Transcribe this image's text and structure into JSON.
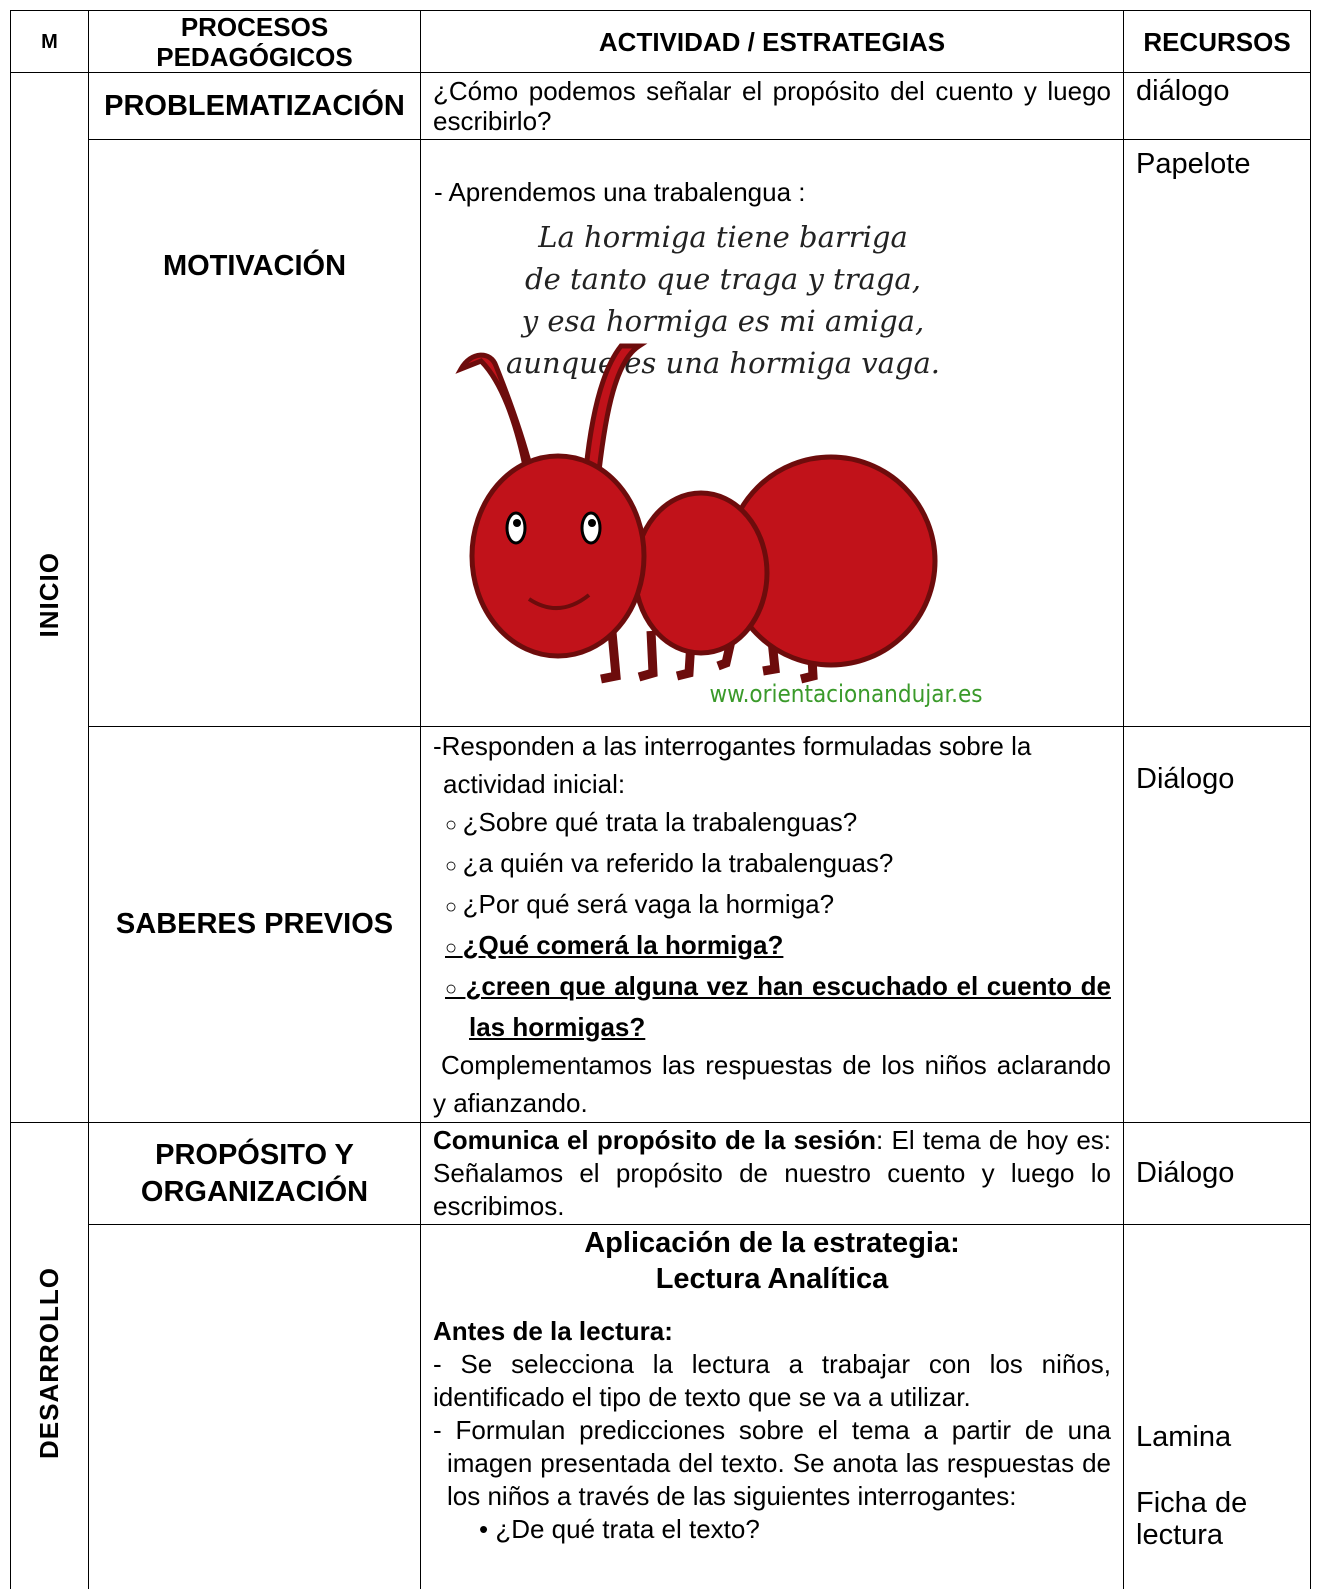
{
  "table": {
    "headers": [
      "M",
      "PROCESOS PEDAGÓGICOS",
      "ACTIVIDAD / ESTRATEGIAS",
      "RECURSOS"
    ],
    "moments": [
      "INICIO",
      "DESARROLLO"
    ],
    "rows": [
      {
        "process": "PROBLEMATIZACIÓN",
        "activity": "¿Cómo podemos señalar el propósito del cuento y luego escribirlo?",
        "resources": [
          "diálogo"
        ]
      },
      {
        "process": "MOTIVACIÓN",
        "intro": "- Aprendemos una trabalengua :",
        "twister": [
          "La hormiga tiene barriga",
          "de tanto que traga y traga,",
          "y esa hormiga es mi amiga,",
          "aunque es una hormiga vaga."
        ],
        "watermark": "ww.orientacionandujar.es",
        "resources": [
          "Papelote"
        ]
      },
      {
        "process": "SABERES PREVIOS",
        "intro": "-Responden a las interrogantes formuladas sobre la actividad inicial:",
        "questions": [
          "¿Sobre qué trata la trabalenguas?",
          "¿a quién va referido la trabalenguas?",
          "¿Por qué será vaga la hormiga?",
          "¿Qué comerá la hormiga?",
          "¿creen que alguna vez han escuchado el cuento de las hormigas?"
        ],
        "closing": "Complementamos las respuestas de los niños aclarando y afianzando.",
        "resources": [
          "Diálogo"
        ]
      },
      {
        "process": "PROPÓSITO Y ORGANIZACIÓN",
        "lead": "Comunica el propósito de la sesión",
        "activity": ": El tema de hoy es:  Señalamos el propósito de nuestro cuento y luego lo escribimos.",
        "resources": [
          "Diálogo"
        ]
      },
      {
        "title": [
          "Aplicación de la estrategia:",
          "Lectura Analítica"
        ],
        "subheading": "Antes de la lectura:",
        "items": [
          "- Se selecciona la lectura a trabajar con los niños, identificado el tipo de texto que se va a utilizar.",
          "- Formulan predicciones sobre el tema a partir de una imagen presentada del texto. Se anota las respuestas de los niños a través de las siguientes interrogantes:"
        ],
        "bullets": [
          "¿De qué trata el texto?"
        ],
        "resources": [
          "Lamina",
          "Ficha de lectura"
        ]
      }
    ]
  }
}
